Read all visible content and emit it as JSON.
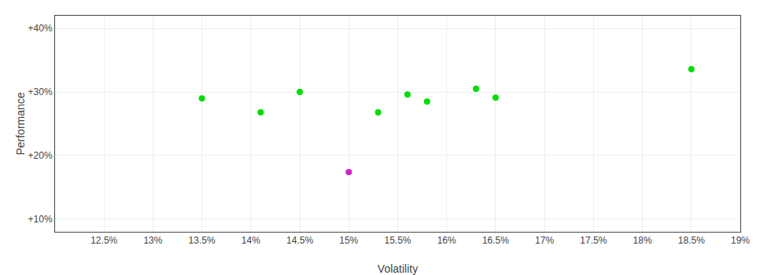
{
  "chart_data": {
    "type": "scatter",
    "xlabel": "Volatility",
    "ylabel": "Performance",
    "xlim": [
      0.12,
      0.19
    ],
    "ylim": [
      0.08,
      0.42
    ],
    "xticks": [
      {
        "value": 0.125,
        "label": "12.5%"
      },
      {
        "value": 0.13,
        "label": "13%"
      },
      {
        "value": 0.135,
        "label": "13.5%"
      },
      {
        "value": 0.14,
        "label": "14%"
      },
      {
        "value": 0.145,
        "label": "14.5%"
      },
      {
        "value": 0.15,
        "label": "15%"
      },
      {
        "value": 0.155,
        "label": "15.5%"
      },
      {
        "value": 0.16,
        "label": "16%"
      },
      {
        "value": 0.165,
        "label": "16.5%"
      },
      {
        "value": 0.17,
        "label": "17%"
      },
      {
        "value": 0.175,
        "label": "17.5%"
      },
      {
        "value": 0.18,
        "label": "18%"
      },
      {
        "value": 0.185,
        "label": "18.5%"
      },
      {
        "value": 0.19,
        "label": "19%"
      }
    ],
    "yticks": [
      {
        "value": 0.1,
        "label": "+10%"
      },
      {
        "value": 0.2,
        "label": "+20%"
      },
      {
        "value": 0.3,
        "label": "+30%"
      },
      {
        "value": 0.4,
        "label": "+40%"
      }
    ],
    "grid": true,
    "series": [
      {
        "color": "#00dd00",
        "x": [
          0.135,
          0.141,
          0.145,
          0.153,
          0.156,
          0.158,
          0.163,
          0.165,
          0.185
        ],
        "values": [
          0.29,
          0.268,
          0.3,
          0.268,
          0.296,
          0.285,
          0.305,
          0.291,
          0.336
        ]
      },
      {
        "color": "#cc22cc",
        "x": [
          0.15
        ],
        "values": [
          0.174
        ]
      }
    ]
  }
}
